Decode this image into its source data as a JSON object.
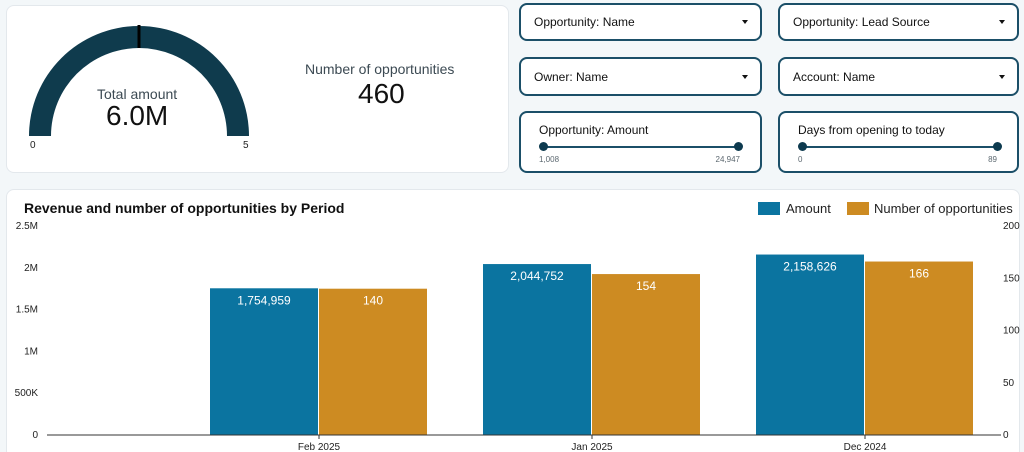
{
  "kpi": {
    "gauge": {
      "label": "Total amount",
      "value": "6.0M",
      "min_label": "0",
      "max_label": "5",
      "target_fraction": 0.5,
      "color": "#0f3b4d"
    },
    "opportunities": {
      "label": "Number of opportunities",
      "value": "460"
    }
  },
  "filters": {
    "opportunity_name": {
      "label": "Opportunity: Name"
    },
    "lead_source": {
      "label": "Opportunity: Lead Source"
    },
    "owner_name": {
      "label": "Owner: Name"
    },
    "account_name": {
      "label": "Account: Name"
    },
    "amount": {
      "label": "Opportunity: Amount",
      "min": "1,008",
      "max": "24,947"
    },
    "days": {
      "label": "Days from opening to today",
      "min": "0",
      "max": "89"
    }
  },
  "colors": {
    "amount": "#0b74a0",
    "opportunities": "#cd8b22",
    "accent": "#1b4f68"
  },
  "chart_data": {
    "type": "bar",
    "title": "Revenue and number of opportunities by Period",
    "categories": [
      "Feb 2025",
      "Jan 2025",
      "Dec 2024"
    ],
    "series": [
      {
        "name": "Amount",
        "axis": "left",
        "values": [
          1754959,
          2044752,
          2158626
        ],
        "labels": [
          "1,754,959",
          "2,044,752",
          "2,158,626"
        ]
      },
      {
        "name": "Number of opportunities",
        "axis": "right",
        "values": [
          140,
          154,
          166
        ],
        "labels": [
          "140",
          "154",
          "166"
        ]
      }
    ],
    "y_left": {
      "min": 0,
      "max": 2500000,
      "ticks": [
        0,
        500000,
        1000000,
        1500000,
        2000000,
        2500000
      ],
      "tick_labels": [
        "0",
        "500K",
        "1M",
        "1.5M",
        "2M",
        "2.5M"
      ]
    },
    "y_right": {
      "min": 0,
      "max": 200,
      "ticks": [
        0,
        50,
        100,
        150,
        200
      ],
      "tick_labels": [
        "0",
        "50",
        "100",
        "150",
        "200"
      ]
    },
    "legend_position": "top-right"
  }
}
